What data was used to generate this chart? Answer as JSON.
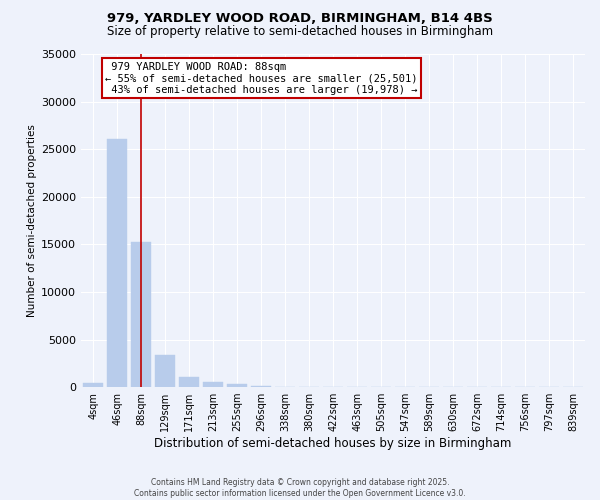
{
  "title_line1": "979, YARDLEY WOOD ROAD, BIRMINGHAM, B14 4BS",
  "title_line2": "Size of property relative to semi-detached houses in Birmingham",
  "xlabel": "Distribution of semi-detached houses by size in Birmingham",
  "ylabel": "Number of semi-detached properties",
  "categories": [
    "4sqm",
    "46sqm",
    "88sqm",
    "129sqm",
    "171sqm",
    "213sqm",
    "255sqm",
    "296sqm",
    "338sqm",
    "380sqm",
    "422sqm",
    "463sqm",
    "505sqm",
    "547sqm",
    "589sqm",
    "630sqm",
    "672sqm",
    "714sqm",
    "756sqm",
    "797sqm",
    "839sqm"
  ],
  "values": [
    400,
    26100,
    15200,
    3400,
    1100,
    550,
    350,
    150,
    0,
    0,
    0,
    0,
    0,
    0,
    0,
    0,
    0,
    0,
    0,
    0,
    0
  ],
  "bar_color": "#b8cceb",
  "bar_edge_color": "#b8cceb",
  "highlight_index": 2,
  "highlight_color": "#c00000",
  "property_label": "979 YARDLEY WOOD ROAD: 88sqm",
  "smaller_pct": "55%",
  "smaller_count": "25,501",
  "larger_pct": "43%",
  "larger_count": "19,978",
  "annotation_box_color": "#c00000",
  "ylim": [
    0,
    35000
  ],
  "yticks": [
    0,
    5000,
    10000,
    15000,
    20000,
    25000,
    30000,
    35000
  ],
  "background_color": "#eef2fb",
  "grid_color": "#ffffff",
  "footer_line1": "Contains HM Land Registry data © Crown copyright and database right 2025.",
  "footer_line2": "Contains public sector information licensed under the Open Government Licence v3.0."
}
